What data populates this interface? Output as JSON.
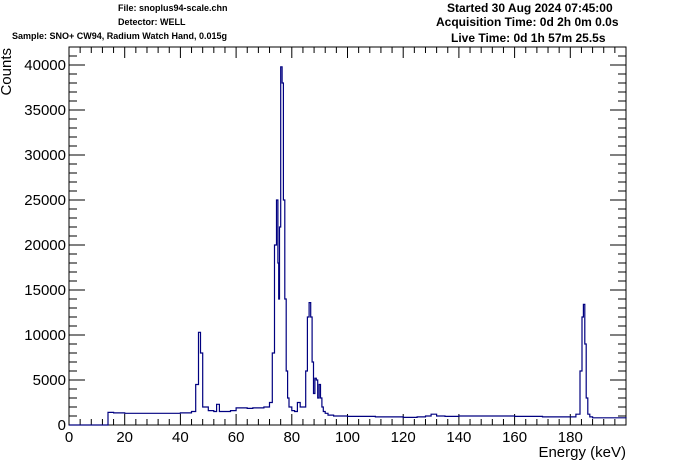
{
  "header": {
    "file": "File: snoplus94-scale.chn",
    "detector": "Detector: WELL",
    "sample": "Sample: SNO+ CW94, Radium Watch Hand, 0.015g",
    "started": "Started 30 Aug 2024 07:45:00",
    "acquisition": "Acquisition Time: 0d 2h 0m 0.0s",
    "live": "Live Time: 0d 1h 57m 25.5s"
  },
  "chart_data": {
    "type": "line",
    "title": "",
    "xlabel": "Energy (keV)",
    "ylabel": "Counts",
    "xlim": [
      0,
      200
    ],
    "ylim": [
      0,
      42000
    ],
    "x_ticks": [
      0,
      20,
      40,
      60,
      80,
      100,
      120,
      140,
      160,
      180
    ],
    "y_ticks": [
      0,
      5000,
      10000,
      15000,
      20000,
      25000,
      30000,
      35000,
      40000
    ],
    "grid": false,
    "line_color": "#000080",
    "series": [
      {
        "x": [
          0,
          13.8,
          14,
          16,
          20,
          30,
          40,
          44,
          45.5,
          46.5,
          47.2,
          48,
          50,
          52,
          53,
          54,
          56,
          58,
          60,
          62,
          64,
          66,
          68,
          70,
          72,
          73,
          73.8,
          74.5,
          75,
          75.3,
          75.6,
          76,
          76.5,
          77,
          77.5,
          78,
          78.5,
          79,
          80,
          81,
          82,
          83,
          84,
          85,
          85.6,
          86.2,
          86.8,
          87.3,
          87.8,
          88.3,
          88.8,
          89.3,
          89.8,
          90.3,
          90.8,
          91.3,
          92,
          93,
          95,
          100,
          110,
          120,
          125,
          128,
          130,
          132,
          135,
          140,
          150,
          160,
          170,
          180,
          182,
          183.5,
          184.2,
          184.7,
          185.2,
          185.7,
          186.3,
          187,
          188,
          190,
          200
        ],
        "y": [
          0,
          0,
          1400,
          1350,
          1300,
          1300,
          1350,
          1500,
          4500,
          10300,
          8000,
          2000,
          1600,
          1500,
          2300,
          1500,
          1500,
          1600,
          1900,
          1900,
          1850,
          1900,
          1900,
          2000,
          2500,
          8000,
          20000,
          25000,
          18000,
          14000,
          22000,
          39800,
          38000,
          25000,
          14000,
          6000,
          3000,
          2000,
          1600,
          1500,
          2500,
          2000,
          2000,
          6000,
          12000,
          13600,
          12000,
          7000,
          3500,
          5200,
          5000,
          3000,
          4500,
          3000,
          2000,
          1500,
          1300,
          1100,
          1000,
          950,
          900,
          850,
          900,
          1000,
          1200,
          1000,
          950,
          1000,
          1000,
          950,
          900,
          900,
          1200,
          6000,
          12000,
          13400,
          9000,
          3000,
          1200,
          900,
          800,
          800,
          750
        ]
      }
    ]
  }
}
